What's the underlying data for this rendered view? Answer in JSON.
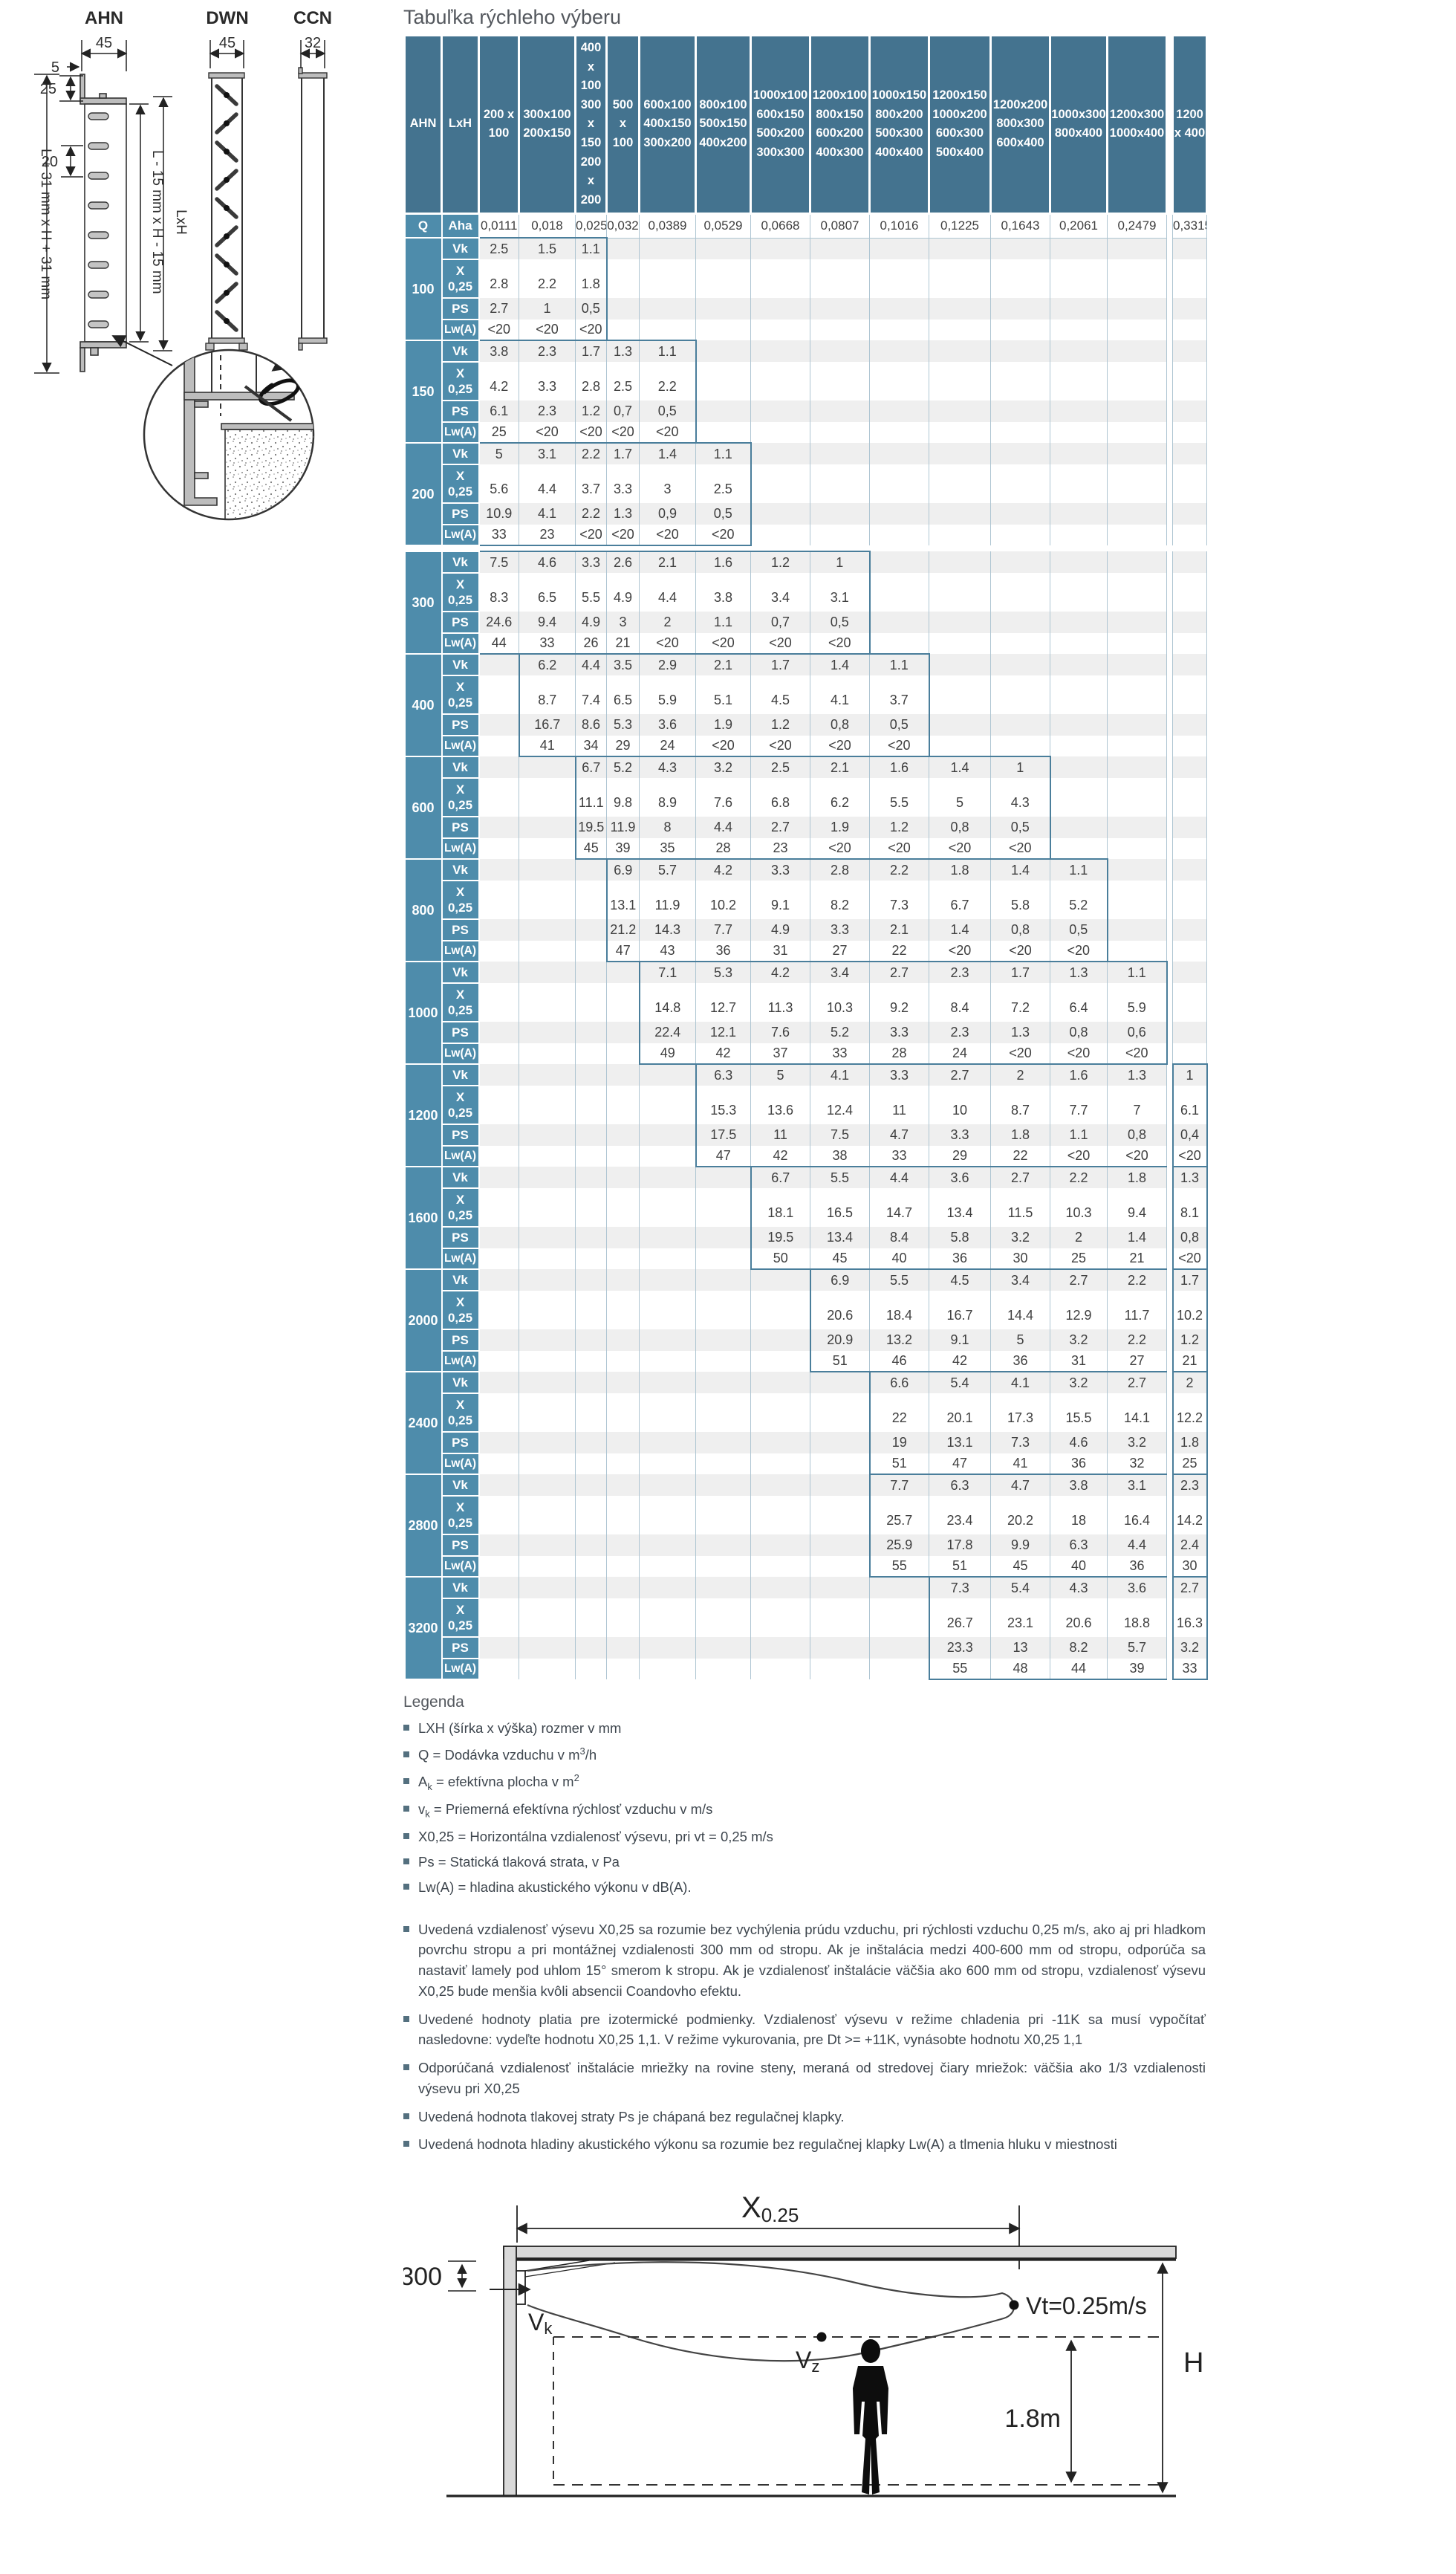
{
  "title": "Tabuľka rýchleho výberu",
  "drawings": {
    "ahn": {
      "name": "AHN",
      "w": "45",
      "lip": "5",
      "d25": "25",
      "d20": "20",
      "outer": "L + 31 mm x H + 31 mm",
      "inner": "L - 15 mm x H - 15 mm",
      "lxh": "LxH"
    },
    "dwn": {
      "name": "DWN",
      "w": "45"
    },
    "ccn": {
      "name": "CCN",
      "w": "32"
    }
  },
  "table": {
    "corner": [
      "AHN",
      "LxH"
    ],
    "row_labels": {
      "vk": "Vk",
      "x1": "X",
      "x2": "0,25",
      "ps": "PS",
      "lwa": "Lw(A)"
    },
    "q_row": {
      "q": "Q",
      "a": "Aha",
      "values": [
        "0,0111",
        "0,018",
        "0,025",
        "0,032",
        "0,0389",
        "0,0529",
        "0,0668",
        "0,0807",
        "0,1016",
        "0,1225",
        "0,1643",
        "0,2061",
        "0,2479",
        "0,3315"
      ]
    },
    "columns": [
      [
        "200 x",
        "100"
      ],
      [
        "300x100",
        "200x150"
      ],
      [
        "400",
        "x",
        "100",
        "300",
        "x",
        "150",
        "200",
        "x",
        "200"
      ],
      [
        "500",
        "x",
        "100"
      ],
      [
        "600x100",
        "400x150",
        "300x200"
      ],
      [
        "800x100",
        "500x150",
        "400x200"
      ],
      [
        "1000x100",
        "600x150",
        "500x200",
        "300x300"
      ],
      [
        "1200x100",
        "800x150",
        "600x200",
        "400x300"
      ],
      [
        "1000x150",
        "800x200",
        "500x300",
        "400x400"
      ],
      [
        "1200x150",
        "1000x200",
        "600x300",
        "500x400"
      ],
      [
        "1200x200",
        "800x300",
        "600x400"
      ],
      [
        "1000x300",
        "800x400"
      ],
      [
        "1200x300",
        "1000x400"
      ],
      [
        "1200",
        "x 400"
      ]
    ],
    "groups": [
      {
        "q": "100",
        "range": [
          0,
          2
        ],
        "vk": [
          "2.5",
          "1.5",
          "1.1"
        ],
        "x025": [
          "2.8",
          "2.2",
          "1.8"
        ],
        "ps": [
          "2.7",
          "1",
          "0,5"
        ],
        "lwa": [
          "<20",
          "<20",
          "<20"
        ],
        "gap_after": false
      },
      {
        "q": "150",
        "range": [
          0,
          4
        ],
        "vk": [
          "3.8",
          "2.3",
          "1.7",
          "1.3",
          "1.1"
        ],
        "x025": [
          "4.2",
          "3.3",
          "2.8",
          "2.5",
          "2.2"
        ],
        "ps": [
          "6.1",
          "2.3",
          "1.2",
          "0,7",
          "0,5"
        ],
        "lwa": [
          "25",
          "<20",
          "<20",
          "<20",
          "<20"
        ],
        "gap_after": false
      },
      {
        "q": "200",
        "range": [
          0,
          5
        ],
        "vk": [
          "5",
          "3.1",
          "2.2",
          "1.7",
          "1.4",
          "1.1"
        ],
        "x025": [
          "5.6",
          "4.4",
          "3.7",
          "3.3",
          "3",
          "2.5"
        ],
        "ps": [
          "10.9",
          "4.1",
          "2.2",
          "1.3",
          "0,9",
          "0,5"
        ],
        "lwa": [
          "33",
          "23",
          "<20",
          "<20",
          "<20",
          "<20"
        ],
        "gap_after": true
      },
      {
        "q": "300",
        "range": [
          0,
          7
        ],
        "vk": [
          "7.5",
          "4.6",
          "3.3",
          "2.6",
          "2.1",
          "1.6",
          "1.2",
          "1"
        ],
        "x025": [
          "8.3",
          "6.5",
          "5.5",
          "4.9",
          "4.4",
          "3.8",
          "3.4",
          "3.1"
        ],
        "ps": [
          "24.6",
          "9.4",
          "4.9",
          "3",
          "2",
          "1.1",
          "0,7",
          "0,5"
        ],
        "lwa": [
          "44",
          "33",
          "26",
          "21",
          "<20",
          "<20",
          "<20",
          "<20"
        ],
        "gap_after": false
      },
      {
        "q": "400",
        "range": [
          1,
          8
        ],
        "vk": [
          "6.2",
          "4.4",
          "3.5",
          "2.9",
          "2.1",
          "1.7",
          "1.4",
          "1.1"
        ],
        "x025": [
          "8.7",
          "7.4",
          "6.5",
          "5.9",
          "5.1",
          "4.5",
          "4.1",
          "3.7"
        ],
        "ps": [
          "16.7",
          "8.6",
          "5.3",
          "3.6",
          "1.9",
          "1.2",
          "0,8",
          "0,5"
        ],
        "lwa": [
          "41",
          "34",
          "29",
          "24",
          "<20",
          "<20",
          "<20",
          "<20"
        ],
        "gap_after": false
      },
      {
        "q": "600",
        "range": [
          2,
          10
        ],
        "vk": [
          "6.7",
          "5.2",
          "4.3",
          "3.2",
          "2.5",
          "2.1",
          "1.6",
          "1.4",
          "1"
        ],
        "x025": [
          "11.1",
          "9.8",
          "8.9",
          "7.6",
          "6.8",
          "6.2",
          "5.5",
          "5",
          "4.3"
        ],
        "ps": [
          "19.5",
          "11.9",
          "8",
          "4.4",
          "2.7",
          "1.9",
          "1.2",
          "0,8",
          "0,5"
        ],
        "lwa": [
          "45",
          "39",
          "35",
          "28",
          "23",
          "<20",
          "<20",
          "<20",
          "<20"
        ],
        "gap_after": false
      },
      {
        "q": "800",
        "range": [
          3,
          11
        ],
        "vk": [
          "6.9",
          "5.7",
          "4.2",
          "3.3",
          "2.8",
          "2.2",
          "1.8",
          "1.4",
          "1.1"
        ],
        "x025": [
          "13.1",
          "11.9",
          "10.2",
          "9.1",
          "8.2",
          "7.3",
          "6.7",
          "5.8",
          "5.2"
        ],
        "ps": [
          "21.2",
          "14.3",
          "7.7",
          "4.9",
          "3.3",
          "2.1",
          "1.4",
          "0,8",
          "0,5"
        ],
        "lwa": [
          "47",
          "43",
          "36",
          "31",
          "27",
          "22",
          "<20",
          "<20",
          "<20"
        ],
        "gap_after": false
      },
      {
        "q": "1000",
        "range": [
          4,
          12
        ],
        "vk": [
          "7.1",
          "5.3",
          "4.2",
          "3.4",
          "2.7",
          "2.3",
          "1.7",
          "1.3",
          "1.1"
        ],
        "x025": [
          "14.8",
          "12.7",
          "11.3",
          "10.3",
          "9.2",
          "8.4",
          "7.2",
          "6.4",
          "5.9"
        ],
        "ps": [
          "22.4",
          "12.1",
          "7.6",
          "5.2",
          "3.3",
          "2.3",
          "1.3",
          "0,8",
          "0,6"
        ],
        "lwa": [
          "49",
          "42",
          "37",
          "33",
          "28",
          "24",
          "<20",
          "<20",
          "<20"
        ],
        "gap_after": false
      },
      {
        "q": "1200",
        "range": [
          5,
          13
        ],
        "vk": [
          "6.3",
          "5",
          "4.1",
          "3.3",
          "2.7",
          "2",
          "1.6",
          "1.3",
          "1"
        ],
        "x025": [
          "15.3",
          "13.6",
          "12.4",
          "11",
          "10",
          "8.7",
          "7.7",
          "7",
          "6.1"
        ],
        "ps": [
          "17.5",
          "11",
          "7.5",
          "4.7",
          "3.3",
          "1.8",
          "1.1",
          "0,8",
          "0,4"
        ],
        "lwa": [
          "47",
          "42",
          "38",
          "33",
          "29",
          "22",
          "<20",
          "<20",
          "<20"
        ],
        "gap_after": false
      },
      {
        "q": "1600",
        "range": [
          6,
          13
        ],
        "vk": [
          "6.7",
          "5.5",
          "4.4",
          "3.6",
          "2.7",
          "2.2",
          "1.8",
          "1.3"
        ],
        "x025": [
          "18.1",
          "16.5",
          "14.7",
          "13.4",
          "11.5",
          "10.3",
          "9.4",
          "8.1"
        ],
        "ps": [
          "19.5",
          "13.4",
          "8.4",
          "5.8",
          "3.2",
          "2",
          "1.4",
          "0,8"
        ],
        "lwa": [
          "50",
          "45",
          "40",
          "36",
          "30",
          "25",
          "21",
          "<20"
        ],
        "gap_after": false
      },
      {
        "q": "2000",
        "range": [
          7,
          13
        ],
        "vk": [
          "6.9",
          "5.5",
          "4.5",
          "3.4",
          "2.7",
          "2.2",
          "1.7"
        ],
        "x025": [
          "20.6",
          "18.4",
          "16.7",
          "14.4",
          "12.9",
          "11.7",
          "10.2"
        ],
        "ps": [
          "20.9",
          "13.2",
          "9.1",
          "5",
          "3.2",
          "2.2",
          "1.2"
        ],
        "lwa": [
          "51",
          "46",
          "42",
          "36",
          "31",
          "27",
          "21"
        ],
        "gap_after": false
      },
      {
        "q": "2400",
        "range": [
          8,
          13
        ],
        "vk": [
          "6.6",
          "5.4",
          "4.1",
          "3.2",
          "2.7",
          "2"
        ],
        "x025": [
          "22",
          "20.1",
          "17.3",
          "15.5",
          "14.1",
          "12.2"
        ],
        "ps": [
          "19",
          "13.1",
          "7.3",
          "4.6",
          "3.2",
          "1.8"
        ],
        "lwa": [
          "51",
          "47",
          "41",
          "36",
          "32",
          "25"
        ],
        "gap_after": false
      },
      {
        "q": "2800",
        "range": [
          8,
          13
        ],
        "vk": [
          "7.7",
          "6.3",
          "4.7",
          "3.8",
          "3.1",
          "2.3"
        ],
        "x025": [
          "25.7",
          "23.4",
          "20.2",
          "18",
          "16.4",
          "14.2"
        ],
        "ps": [
          "25.9",
          "17.8",
          "9.9",
          "6.3",
          "4.4",
          "2.4"
        ],
        "lwa": [
          "55",
          "51",
          "45",
          "40",
          "36",
          "30"
        ],
        "gap_after": false
      },
      {
        "q": "3200",
        "range": [
          9,
          13
        ],
        "vk": [
          "7.3",
          "5.4",
          "4.3",
          "3.6",
          "2.7"
        ],
        "x025": [
          "26.7",
          "23.1",
          "20.6",
          "18.8",
          "16.3"
        ],
        "ps": [
          "23.3",
          "13",
          "8.2",
          "5.7",
          "3.2"
        ],
        "lwa": [
          "55",
          "48",
          "44",
          "39",
          "33"
        ],
        "gap_after": false
      }
    ]
  },
  "legend": {
    "heading": "Legenda",
    "items": [
      [
        {
          "t": "LXH (šírka x výška) rozmer v mm"
        }
      ],
      [
        {
          "t": "Q = Dodávka vzduchu v m"
        },
        {
          "sup": "3"
        },
        {
          "t": "/h"
        }
      ],
      [
        {
          "t": "A"
        },
        {
          "sub": "k"
        },
        {
          "t": " = efektívna plocha v m"
        },
        {
          "sup": "2"
        }
      ],
      [
        {
          "t": "v"
        },
        {
          "sub": "k"
        },
        {
          "t": " = Priemerná efektívna rýchlosť vzduchu v m/s"
        }
      ],
      [
        {
          "t": "X0,25 = Horizontálna vzdialenosť výsevu, pri vt = 0,25 m/s"
        }
      ],
      [
        {
          "t": "Ps = Statická tlaková strata, v Pa"
        }
      ],
      [
        {
          "t": "Lw(A) = hladina akustického výkonu v dB(A)."
        }
      ]
    ]
  },
  "notes": [
    "Uvedená vzdialenosť výsevu X0,25 sa rozumie bez vychýlenia prúdu vzduchu, pri rýchlosti vzduchu 0,25 m/s, ako aj pri hladkom povrchu stropu a pri montážnej vzdialenosti 300 mm od stropu. Ak je inštalácia medzi 400-600 mm od stropu, odporúča sa nastaviť lamely pod uhlom 15° smerom k stropu. Ak je vzdialenosť inštalácie väčšia ako 600 mm od stropu, vzdialenosť výsevu X0,25 bude menšia kvôli absencii Coandovho efektu.",
    "Uvedené hodnoty platia pre izotermické podmienky. Vzdialenosť výsevu v režime chladenia pri -11K sa musí vypočítať nasledovne: vydeľte hodnotu X0,25 1,1. V režime vykurovania, pre Dt >= +11K, vynásobte hodnotu X0,25 1,1",
    "Odporúčaná vzdialenosť inštalácie mriežky na rovine steny, meraná od stredovej čiary mriežok: väčšia ako 1/3 vzdialenosti výsevu pri X0,25",
    "Uvedená hodnota tlakovej straty Ps je chápaná bez regulačnej klapky.",
    "Uvedená hodnota hladiny akustického výkonu sa rozumie bez regulačnej klapky Lw(A) a tlmenia hluku v miestnosti"
  ],
  "diagram": {
    "x": "X",
    "x_sub": "0.25",
    "d300": "300",
    "vk": "V",
    "vk_sub": "k",
    "vz": "V",
    "vz_sub": "z",
    "vt": "Vt=0.25m/s",
    "m18": "1.8m",
    "h": "H"
  },
  "colors": {
    "header": "#44738F",
    "label": "#4E8CAB",
    "band": "#EFEFEF",
    "sep": "#AEC5D2",
    "stair": "#4A7E9B",
    "text": "#3F3F3F"
  }
}
